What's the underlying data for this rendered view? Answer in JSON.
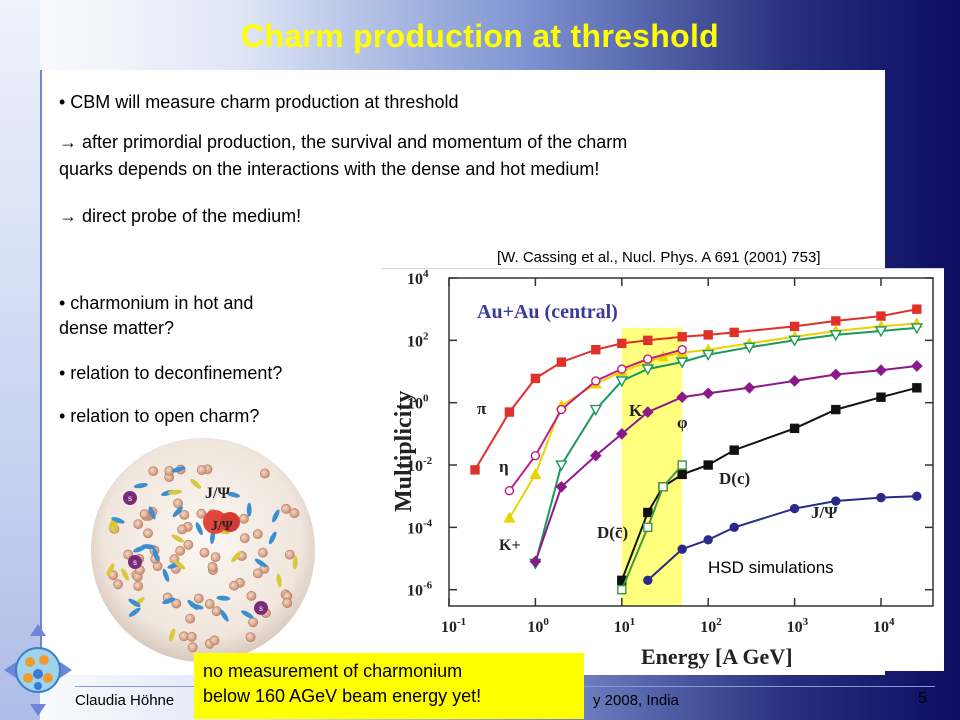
{
  "slide": {
    "title": "Charm production at threshold",
    "bullets_top": [
      "• CBM will measure charm production at threshold",
      "→ after primordial production, the survival and momentum of the charm",
      "quarks depends on the interactions with the dense and hot medium!",
      "→ direct probe of the medium!"
    ],
    "bullets_left": [
      "• charmonium in hot and",
      "dense matter?",
      "• relation to deconfinement?",
      "• relation to open charm?"
    ],
    "citation": "[W. Cassing et al., Nucl. Phys. A 691 (2001) 753]",
    "hsd_label": "HSD simulations",
    "note_line1": "no measurement of charmonium",
    "note_line2": "below 160 AGeV beam energy yet!",
    "footer_left": "Claudia Höhne",
    "footer_right": "y 2008, India",
    "page_number": "5",
    "illustration_labels": {
      "jpsi": "J/Ψ",
      "s": "s"
    }
  },
  "chart_data": {
    "type": "line",
    "title": "Au+Au (central)",
    "xlabel": "Energy [A GeV]",
    "ylabel": "Multiplicity",
    "xscale": "log",
    "yscale": "log",
    "xlim": [
      0.1,
      40000
    ],
    "ylim": [
      3e-07,
      10000
    ],
    "x_tick_labels": [
      "10-1",
      "100",
      "101",
      "102",
      "103",
      "104"
    ],
    "y_tick_labels": [
      "10-6",
      "10-4",
      "10-2",
      "100",
      "102",
      "104"
    ],
    "highlight_band": {
      "x_from": 10,
      "x_to": 50,
      "color": "#ffff66"
    },
    "series": [
      {
        "name": "π",
        "color": "#e0302a",
        "marker": "square",
        "x": [
          0.2,
          0.5,
          1,
          2,
          5,
          10,
          20,
          50,
          100,
          200,
          1000,
          3000,
          10000,
          26000
        ],
        "y": [
          0.007,
          0.5,
          6,
          20,
          50,
          80,
          100,
          130,
          150,
          180,
          280,
          420,
          600,
          1000
        ]
      },
      {
        "name": "",
        "color": "#e8d400",
        "marker": "triangle",
        "x": [
          0.5,
          1,
          2,
          5,
          10,
          20,
          30,
          50,
          100,
          300,
          1000,
          3000,
          10000,
          26000
        ],
        "y": [
          0.0002,
          0.005,
          0.8,
          4,
          10,
          20,
          30,
          40,
          50,
          80,
          130,
          200,
          280,
          350
        ]
      },
      {
        "name": "η",
        "color": "#c21a87",
        "marker": "circle-open",
        "x": [
          0.5,
          1,
          2,
          5,
          10,
          20,
          50
        ],
        "y": [
          0.0015,
          0.02,
          0.6,
          5,
          12,
          25,
          50
        ]
      },
      {
        "name": "K-",
        "color": "#1a9a5a",
        "marker": "triangle-down-open",
        "x": [
          1,
          2,
          5,
          10,
          20,
          50,
          100,
          300,
          1000,
          3000,
          10000,
          26000
        ],
        "y": [
          7e-06,
          0.01,
          0.6,
          5,
          12,
          20,
          35,
          60,
          100,
          150,
          200,
          250
        ]
      },
      {
        "name": "φ",
        "color": "#8a1a8a",
        "marker": "diamond",
        "x": [
          1,
          2,
          5,
          10,
          20,
          50,
          100,
          300,
          1000,
          3000,
          10000,
          26000
        ],
        "y": [
          8e-06,
          0.002,
          0.02,
          0.1,
          0.5,
          1.5,
          2,
          3,
          5,
          8,
          11,
          15
        ]
      },
      {
        "name": "D(c)",
        "color": "#111111",
        "marker": "square",
        "x": [
          10,
          20,
          30,
          50,
          100,
          200,
          1000,
          3000,
          10000,
          26000
        ],
        "y": [
          2e-06,
          0.0003,
          0.002,
          0.005,
          0.01,
          0.03,
          0.15,
          0.6,
          1.5,
          3
        ]
      },
      {
        "name": "D(c̄)",
        "color": "#3c9a3c",
        "marker": "square-open",
        "x": [
          10,
          20,
          30,
          50
        ],
        "y": [
          1e-06,
          0.0001,
          0.002,
          0.01
        ]
      },
      {
        "name": "J/Ψ",
        "color": "#2a2a8a",
        "marker": "circle",
        "x": [
          20,
          50,
          100,
          200,
          1000,
          3000,
          10000,
          26000
        ],
        "y": [
          2e-06,
          2e-05,
          4e-05,
          0.0001,
          0.0004,
          0.0007,
          0.0009,
          0.001
        ]
      }
    ]
  }
}
